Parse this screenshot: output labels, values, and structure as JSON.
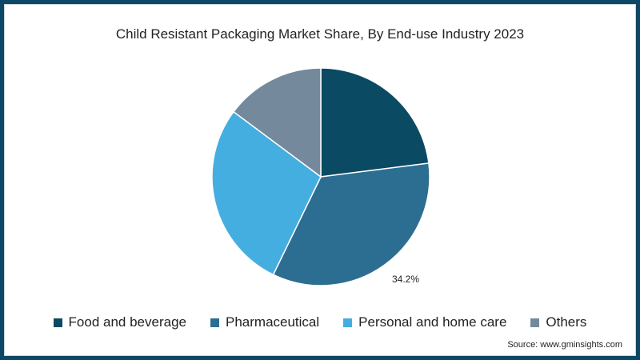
{
  "title": "Child Resistant Packaging Market Share, By End-use Industry 2023",
  "source": "Source: www.gminsights.com",
  "legend": [
    {
      "label": "Food and beverage",
      "color": "#0b4a63"
    },
    {
      "label": "Pharmaceutical",
      "color": "#2c6e92"
    },
    {
      "label": "Personal and home care",
      "color": "#45aee0"
    },
    {
      "label": "Others",
      "color": "#748a9c"
    }
  ],
  "data_label": "34.2%",
  "chart_data": {
    "type": "pie",
    "title": "Child Resistant Packaging Market Share, By End-use Industry 2023",
    "categories": [
      "Food and beverage",
      "Pharmaceutical",
      "Personal and home care",
      "Others"
    ],
    "values": [
      23.0,
      34.2,
      28.0,
      14.8
    ],
    "labels_shown": {
      "Pharmaceutical": "34.2%"
    },
    "colors": [
      "#0b4a63",
      "#2c6e92",
      "#45aee0",
      "#748a9c"
    ],
    "legend_position": "bottom",
    "start_angle": "12 o'clock, clockwise"
  }
}
